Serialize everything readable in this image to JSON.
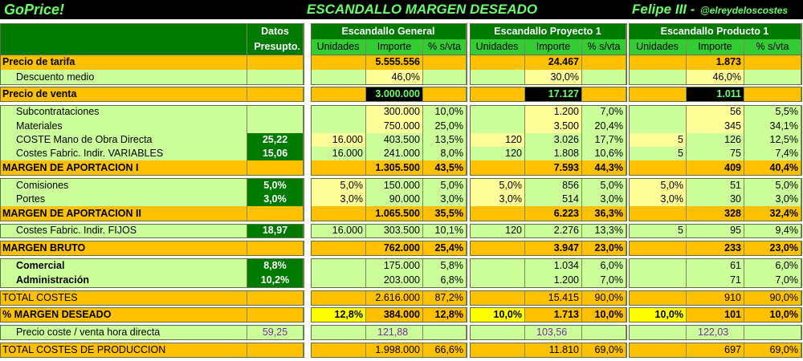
{
  "header": {
    "app_title": "GoPrice!",
    "sheet_title": "ESCANDALLO MARGEN DESEADO",
    "author": "Felipe III -",
    "handle": "@elreydeloscostes"
  },
  "columns": {
    "datos_line1": "Datos",
    "datos_line2": "Presupto.",
    "groups": [
      {
        "title": "Escandallo General",
        "col_labels": [
          "Unidades",
          "Importe",
          "% s/vta"
        ]
      },
      {
        "title": "Escandallo Proyecto 1",
        "col_labels": [
          "Unidades",
          "Importe",
          "% s/vta"
        ]
      },
      {
        "title": "Escandallo Producto 1",
        "col_labels": [
          "Unidades",
          "Importe",
          "% s/vta"
        ]
      }
    ]
  },
  "rows": [
    {
      "label": "Precio de tarifa",
      "datos": "",
      "g": [
        [
          "",
          "5.555.556",
          ""
        ],
        [
          "",
          "24.467",
          ""
        ],
        [
          "",
          "1.873",
          ""
        ]
      ]
    },
    {
      "label": "Descuento medio",
      "datos": "",
      "g": [
        [
          "",
          "46,0%",
          ""
        ],
        [
          "",
          "30,0%",
          ""
        ],
        [
          "",
          "46,0%",
          ""
        ]
      ]
    },
    {
      "label": "Precio de venta",
      "datos": "",
      "g": [
        [
          "",
          "3.000.000",
          ""
        ],
        [
          "",
          "17.127",
          ""
        ],
        [
          "",
          "1.011",
          ""
        ]
      ]
    },
    {
      "label": "Subcontrataciones",
      "datos": "",
      "g": [
        [
          "",
          "300.000",
          "10,0%"
        ],
        [
          "",
          "1.200",
          "7,0%"
        ],
        [
          "",
          "56",
          "5,5%"
        ]
      ]
    },
    {
      "label": "Materiales",
      "datos": "",
      "g": [
        [
          "",
          "750.000",
          "25,0%"
        ],
        [
          "",
          "3.500",
          "20,4%"
        ],
        [
          "",
          "345",
          "34,1%"
        ]
      ]
    },
    {
      "label": "COSTE Mano de Obra Directa",
      "datos": "25,22",
      "g": [
        [
          "16.000",
          "403.500",
          "13,5%"
        ],
        [
          "120",
          "3.026",
          "17,7%"
        ],
        [
          "5",
          "126",
          "12,5%"
        ]
      ]
    },
    {
      "label": "Costes Fabric. Indir. VARIABLES",
      "datos": "15,06",
      "g": [
        [
          "16.000",
          "241.000",
          "8,0%"
        ],
        [
          "120",
          "1.808",
          "10,6%"
        ],
        [
          "5",
          "75",
          "7,4%"
        ]
      ]
    },
    {
      "label": "MARGEN DE APORTACION I",
      "datos": "",
      "g": [
        [
          "",
          "1.305.500",
          "43,5%"
        ],
        [
          "",
          "7.593",
          "44,3%"
        ],
        [
          "",
          "409",
          "40,4%"
        ]
      ]
    },
    {
      "label": "Comisiones",
      "datos": "5,0%",
      "g": [
        [
          "5,0%",
          "150.000",
          "5,0%"
        ],
        [
          "5,0%",
          "856",
          "5,0%"
        ],
        [
          "5,0%",
          "51",
          "5,0%"
        ]
      ]
    },
    {
      "label": "Portes",
      "datos": "3,0%",
      "g": [
        [
          "3,0%",
          "90.000",
          "3,0%"
        ],
        [
          "3,0%",
          "514",
          "3,0%"
        ],
        [
          "3,0%",
          "30",
          "3,0%"
        ]
      ]
    },
    {
      "label": "MARGEN DE APORTACION II",
      "datos": "",
      "g": [
        [
          "",
          "1.065.500",
          "35,5%"
        ],
        [
          "",
          "6.223",
          "36,3%"
        ],
        [
          "",
          "328",
          "32,4%"
        ]
      ]
    },
    {
      "label": "Costes Fabric. Indir. FIJOS",
      "datos": "18,97",
      "g": [
        [
          "16.000",
          "303.500",
          "10,1%"
        ],
        [
          "120",
          "2.276",
          "13,3%"
        ],
        [
          "5",
          "95",
          "9,4%"
        ]
      ]
    },
    {
      "label": "MARGEN BRUTO",
      "datos": "",
      "g": [
        [
          "",
          "762.000",
          "25,4%"
        ],
        [
          "",
          "3.947",
          "23,0%"
        ],
        [
          "",
          "233",
          "23,0%"
        ]
      ]
    },
    {
      "label": "Comercial",
      "datos": "8,8%",
      "g": [
        [
          "",
          "175.000",
          "5,8%"
        ],
        [
          "",
          "1.034",
          "6,0%"
        ],
        [
          "",
          "61",
          "6,0%"
        ]
      ]
    },
    {
      "label": "Administración",
      "datos": "10,2%",
      "g": [
        [
          "",
          "203.000",
          "6,8%"
        ],
        [
          "",
          "1.200",
          "7,0%"
        ],
        [
          "",
          "71",
          "7,0%"
        ]
      ]
    },
    {
      "label": "TOTAL COSTES",
      "datos": "",
      "g": [
        [
          "",
          "2.616.000",
          "87,2%"
        ],
        [
          "",
          "15.415",
          "90,0%"
        ],
        [
          "",
          "910",
          "90,0%"
        ]
      ]
    },
    {
      "label": "% MARGEN DESEADO",
      "datos": "",
      "g": [
        [
          "12,8%",
          "384.000",
          "12,8%"
        ],
        [
          "10,0%",
          "1.713",
          "10,0%"
        ],
        [
          "10,0%",
          "101",
          "10,0%"
        ]
      ]
    },
    {
      "label": "Precio coste / venta hora directa",
      "datos": "59,25",
      "g": [
        [
          "",
          "121,88",
          ""
        ],
        [
          "",
          "103,56",
          ""
        ],
        [
          "",
          "122,03",
          ""
        ]
      ]
    },
    {
      "label": "TOTAL COSTES DE PRODUCCION",
      "datos": "",
      "g": [
        [
          "",
          "1.998.000",
          "66,6%"
        ],
        [
          "",
          "11.810",
          "69,0%"
        ],
        [
          "",
          "697",
          "69,0%"
        ]
      ]
    }
  ]
}
